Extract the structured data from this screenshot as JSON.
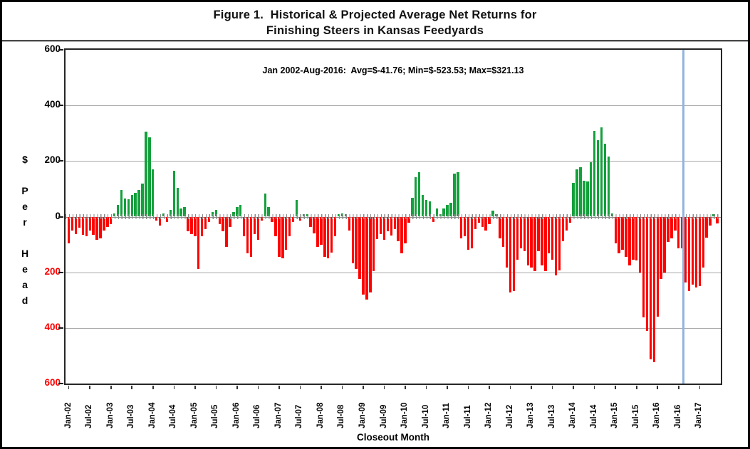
{
  "title": {
    "line1": "Figure 1.  Historical & Projected Average Net Returns for",
    "line2": "Finishing Steers in Kansas Feedyards"
  },
  "annotation": "Jan 2002-Aug-2016:  Avg=$-41.76; Min=$-523.53; Max=$321.13",
  "y_axis": {
    "title_chars": "$\n\nP\ne\nr\n\nH\ne\na\nd",
    "ticks": [
      {
        "value": 600,
        "label": "600",
        "color": "#000000"
      },
      {
        "value": 400,
        "label": "400",
        "color": "#000000"
      },
      {
        "value": 200,
        "label": "200",
        "color": "#000000"
      },
      {
        "value": 0,
        "label": "0",
        "color": "#000000"
      },
      {
        "value": -200,
        "label": "200",
        "color": "#ff0000"
      },
      {
        "value": -400,
        "label": "400",
        "color": "#ff0000"
      },
      {
        "value": -600,
        "label": "600",
        "color": "#ff0000"
      }
    ]
  },
  "x_axis": {
    "title": "Closeout Month",
    "tick_labels": [
      "Jan-02",
      "Jul-02",
      "Jan-03",
      "Jul-03",
      "Jan-04",
      "Jul-04",
      "Jan-05",
      "Jul-05",
      "Jan-06",
      "Jul-06",
      "Jan-07",
      "Jul-07",
      "Jan-08",
      "Jul-08",
      "Jan-09",
      "Jul-09",
      "Jan-10",
      "Jul-10",
      "Jan-11",
      "Jul-11",
      "Jan-12",
      "Jul-12",
      "Jan-13",
      "Jul-13",
      "Jan-14",
      "Jul-14",
      "Jan-15",
      "Jul-15",
      "Jan-16",
      "Jul-16",
      "Jan-17"
    ]
  },
  "chart_data": {
    "type": "bar",
    "title": "Figure 1. Historical & Projected Average Net Returns for Finishing Steers in Kansas Feedyards",
    "xlabel": "Closeout Month",
    "ylabel": "$ Per Head",
    "ylim": [
      -600,
      600
    ],
    "grid_interval": 200,
    "start_month": "Jan-2002",
    "end_month": "Jun-2017",
    "historical_range": "Jan 2002-Aug-2016",
    "stats": {
      "avg": -41.76,
      "min": -523.53,
      "max": 321.13
    },
    "projection_divider_index": 176,
    "values": [
      -97,
      -49,
      -62,
      -40,
      -66,
      -71,
      -49,
      -66,
      -84,
      -79,
      -49,
      -36,
      -27,
      12,
      43,
      95,
      65,
      62,
      78,
      85,
      95,
      120,
      305,
      285,
      170,
      -15,
      -31,
      12,
      -18,
      25,
      165,
      104,
      30,
      34,
      -53,
      -62,
      -71,
      -189,
      -71,
      -45,
      -18,
      17,
      25,
      -27,
      -53,
      -110,
      -36,
      17,
      34,
      43,
      -71,
      -132,
      -145,
      -62,
      -84,
      -14,
      82,
      34,
      -18,
      -71,
      -145,
      -150,
      -119,
      -71,
      -18,
      60,
      -14,
      8,
      8,
      -36,
      -60,
      -110,
      -101,
      -145,
      -150,
      -128,
      -71,
      10,
      12,
      10,
      -51,
      -167,
      -189,
      -224,
      -280,
      -298,
      -272,
      -197,
      -80,
      -62,
      -84,
      -53,
      -67,
      -44,
      -88,
      -132,
      -97,
      -23,
      69,
      143,
      161,
      78,
      60,
      56,
      -18,
      30,
      8,
      30,
      43,
      51,
      156,
      161,
      -79,
      -71,
      -119,
      -114,
      -45,
      -23,
      -36,
      -49,
      -27,
      21,
      8,
      -79,
      -110,
      -184,
      -272,
      -267,
      -154,
      -114,
      -123,
      -176,
      -184,
      -197,
      -123,
      -176,
      -197,
      -132,
      -154,
      -210,
      -193,
      -88,
      -49,
      -23,
      121,
      169,
      178,
      130,
      126,
      196,
      309,
      274,
      321.13,
      261,
      217,
      12,
      -97,
      -132,
      -120,
      -145,
      -176,
      -154,
      -158,
      -202,
      -363,
      -411,
      -512,
      -523.53,
      -359,
      -224,
      -202,
      -90,
      -79,
      -49,
      -114,
      -114,
      -237,
      -267,
      -245,
      -255,
      -250,
      -184,
      -75,
      -31,
      8,
      -25
    ],
    "colors": {
      "positive": "#14A03C",
      "negative": "#FF0000",
      "projection_line": "#92B4DE",
      "gridline": "#A8A8A8",
      "negative_axis_label": "#FF0000"
    },
    "legend": null,
    "grid": true
  }
}
